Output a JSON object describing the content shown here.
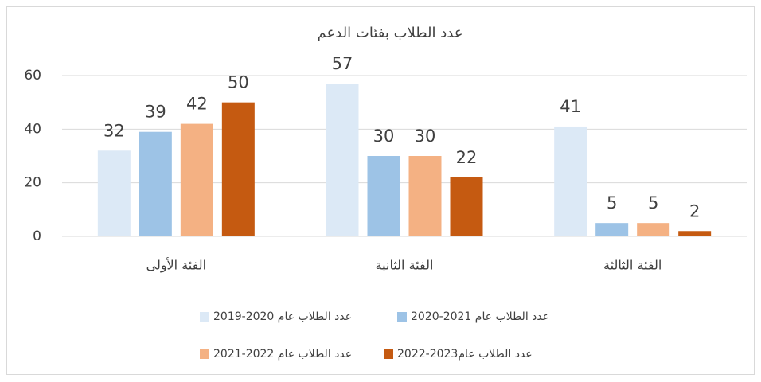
{
  "chart_data": {
    "type": "bar",
    "title": "عدد الطلاب بفئات الدعم",
    "categories": [
      "الفئة الأولى",
      "الفئة الثانية",
      "الفئة الثالثة"
    ],
    "series": [
      {
        "name": "عدد الطلاب عام 2020-2019",
        "color": "#dce9f6",
        "values": [
          32,
          57,
          41
        ]
      },
      {
        "name": "عدد الطلاب عام 2021-2020",
        "color": "#9dc3e6",
        "values": [
          39,
          30,
          5
        ]
      },
      {
        "name": "عدد الطلاب عام 2022-2021",
        "color": "#f4b183",
        "values": [
          42,
          30,
          5
        ]
      },
      {
        "name": "عدد الطلاب عام2023-2022",
        "color": "#c55a11",
        "values": [
          50,
          22,
          2
        ]
      }
    ],
    "ylim": [
      0,
      60
    ],
    "yticks": [
      0,
      20,
      40,
      60
    ],
    "grid": true,
    "legend": "bottom"
  }
}
